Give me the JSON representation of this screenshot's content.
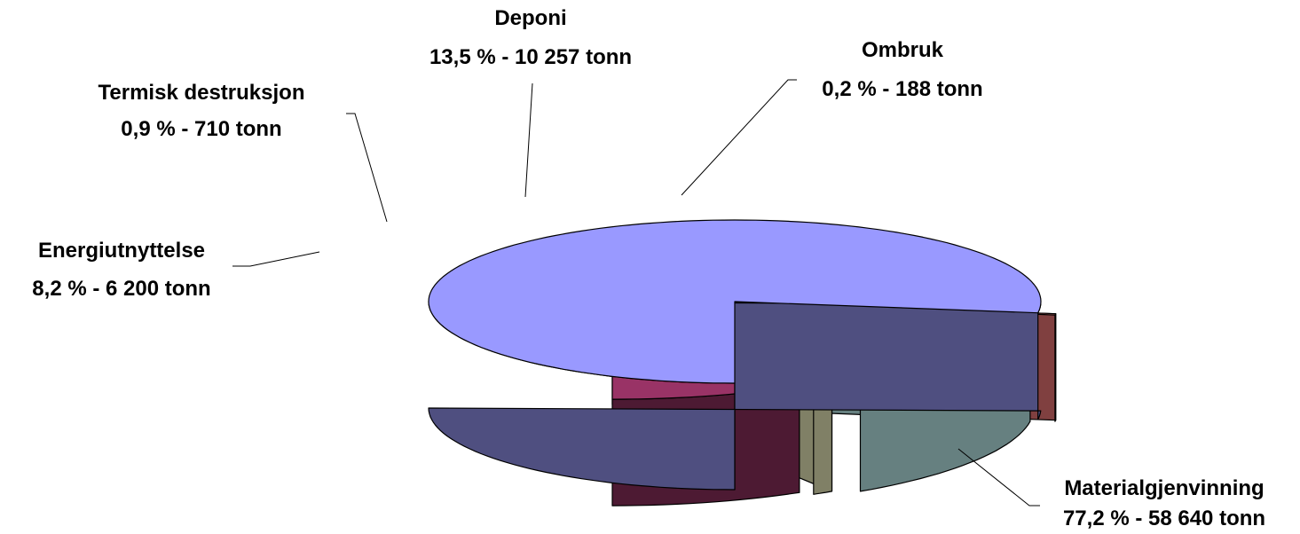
{
  "chart_data": {
    "type": "pie",
    "three_d": true,
    "exploded": true,
    "slices": [
      {
        "name": "Materialgjenvinning",
        "percent": 77.2,
        "tonnes": 58640,
        "value_label": "77,2 % -  58 640 tonn",
        "top_color": "#9999FF",
        "side_color": "#4F4F80"
      },
      {
        "name": "Ombruk",
        "percent": 0.2,
        "tonnes": 188,
        "value_label": "0,2 % - 188 tonn",
        "top_color": "#FF8080",
        "side_color": "#804040"
      },
      {
        "name": "Deponi",
        "percent": 13.5,
        "tonnes": 10257,
        "value_label": "13,5 % - 10 257 tonn",
        "top_color": "#CCFFFF",
        "side_color": "#668080"
      },
      {
        "name": "Termisk destruksjon",
        "percent": 0.9,
        "tonnes": 710,
        "value_label": "0,9 % - 710 tonn",
        "top_color": "#FFFFCC",
        "side_color": "#808066"
      },
      {
        "name": "Energiutnyttelse",
        "percent": 8.2,
        "tonnes": 6200,
        "value_label": "8,2 % - 6 200 tonn",
        "top_color": "#993366",
        "side_color": "#4D1A33"
      }
    ]
  }
}
